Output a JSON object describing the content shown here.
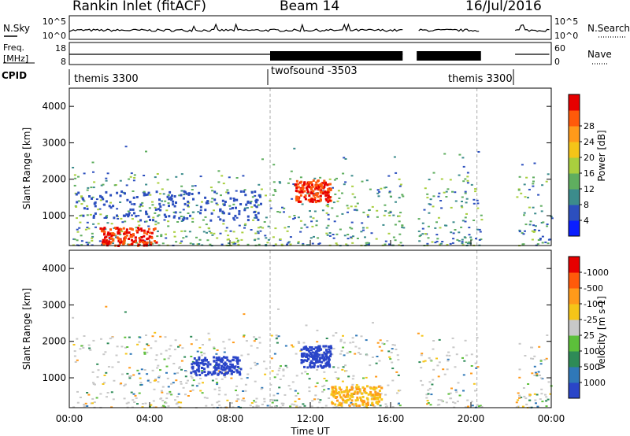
{
  "header": {
    "station": "Rankin Inlet (fitACF)",
    "beam": "Beam 14",
    "date": "16/Jul/2016"
  },
  "panels": {
    "nsky": {
      "label": "N.Sky",
      "ticks": [
        "10^5",
        "10^0"
      ]
    },
    "freq": {
      "label_top": "Freq.",
      "label_bottom": "[MHz]",
      "ticks": [
        "18",
        "8"
      ]
    },
    "cpid": {
      "label": "CPID"
    },
    "nsearch": {
      "label": "N.Search",
      "ticks": [
        "10^5",
        "10^0"
      ]
    },
    "nave": {
      "label": "Nave",
      "ticks": [
        "60",
        "0"
      ]
    }
  },
  "cpid_segments": [
    {
      "name": "themis 3300",
      "start_hour": 0.0,
      "end_hour": 10.0
    },
    {
      "name": "twofsound -3503",
      "start_hour": 10.0,
      "end_hour": 20.3
    },
    {
      "name": "themis 3300",
      "start_hour": 20.3,
      "end_hour": 24.0
    }
  ],
  "data_gaps_hours": [
    [
      16.6,
      17.3
    ],
    [
      20.5,
      22.2
    ]
  ],
  "chart_data": [
    {
      "type": "heatmap",
      "title": "Power",
      "xlabel": "Time UT",
      "ylabel": "Slant Range [km]",
      "x_range_hours": [
        0,
        24
      ],
      "ylim": [
        180,
        4500
      ],
      "x_ticks": [
        "00:00",
        "04:00",
        "08:00",
        "12:00",
        "16:00",
        "20:00",
        "00:00"
      ],
      "y_ticks": [
        1000,
        2000,
        3000,
        4000
      ],
      "colorbar": {
        "label": "Power [dB]",
        "ticks": [
          "4",
          "8",
          "12",
          "16",
          "20",
          "24",
          "28"
        ],
        "colors": [
          "#0a1eff",
          "#2c4fbe",
          "#3c8c8c",
          "#5fae5f",
          "#a9cf3e",
          "#f5c518",
          "#ff9a1a",
          "#ff5a0a",
          "#e60000"
        ]
      },
      "features": [
        {
          "hours": [
            1.5,
            4.3
          ],
          "range_km": [
            200,
            700
          ],
          "value_db": 28
        },
        {
          "hours": [
            11.2,
            13.0
          ],
          "range_km": [
            1400,
            2000
          ],
          "value_db": 24
        },
        {
          "hours": [
            0.3,
            9.5
          ],
          "range_km": [
            900,
            1700
          ],
          "value_db": 8
        }
      ]
    },
    {
      "type": "heatmap",
      "title": "Velocity",
      "xlabel": "Time UT",
      "ylabel": "Slant Range [km]",
      "x_range_hours": [
        0,
        24
      ],
      "ylim": [
        180,
        4500
      ],
      "x_ticks": [
        "00:00",
        "04:00",
        "08:00",
        "12:00",
        "16:00",
        "20:00",
        "00:00"
      ],
      "y_ticks": [
        1000,
        2000,
        3000,
        4000
      ],
      "colorbar": {
        "label": "Velocity [m s-1]",
        "ticks": [
          "1000",
          "500",
          "100",
          "25",
          "-25",
          "-100",
          "-500",
          "-1000"
        ],
        "colors": [
          "#2a45c8",
          "#2f78b8",
          "#2e8b57",
          "#5cbf3a",
          "#c8c8c8",
          "#f5c518",
          "#ff9a1a",
          "#ff5a0a",
          "#e60000"
        ]
      },
      "features": [
        {
          "hours": [
            6.0,
            8.5
          ],
          "range_km": [
            1100,
            1600
          ],
          "value_ms": 1000
        },
        {
          "hours": [
            11.5,
            13.0
          ],
          "range_km": [
            1300,
            1900
          ],
          "value_ms": 1000
        },
        {
          "hours": [
            13.0,
            15.5
          ],
          "range_km": [
            250,
            800
          ],
          "value_ms": -100
        }
      ]
    }
  ]
}
